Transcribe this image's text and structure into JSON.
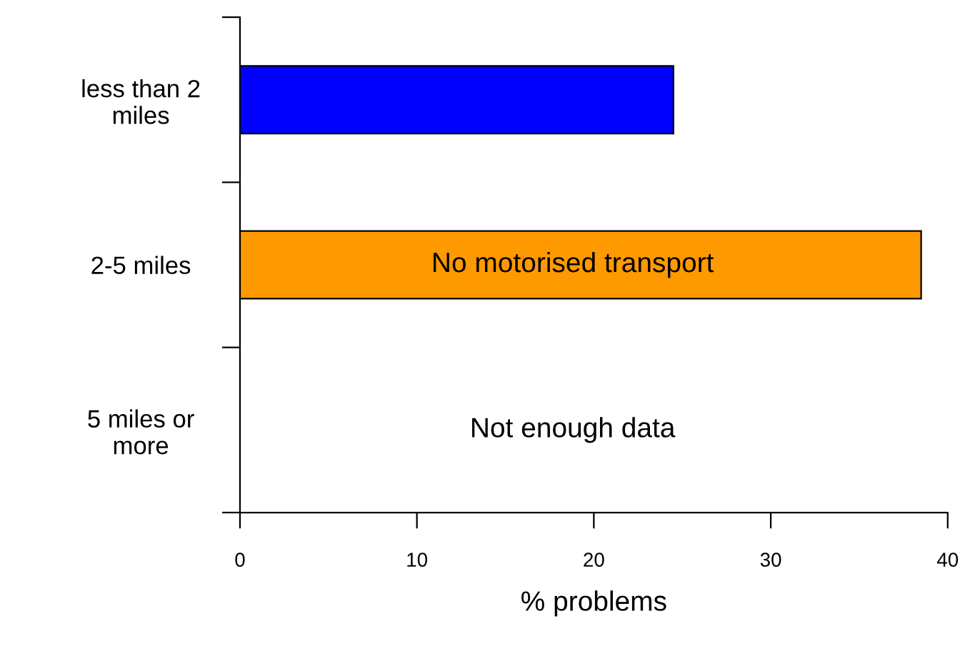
{
  "chart_data": {
    "type": "bar",
    "orientation": "horizontal",
    "xlabel": "% problems",
    "categories": [
      "less than 2\nmiles",
      "2-5 miles",
      "5 miles or\nmore"
    ],
    "values": [
      24.5,
      38.5,
      null
    ],
    "colors": [
      "#0000ff",
      "#ff9900",
      "#ff9900"
    ],
    "xlim": [
      0,
      40
    ],
    "xticks": [
      0,
      10,
      20,
      30,
      40
    ],
    "grid": false,
    "legend": false,
    "annotations": [
      "No motorised transport",
      "Not enough data"
    ]
  }
}
